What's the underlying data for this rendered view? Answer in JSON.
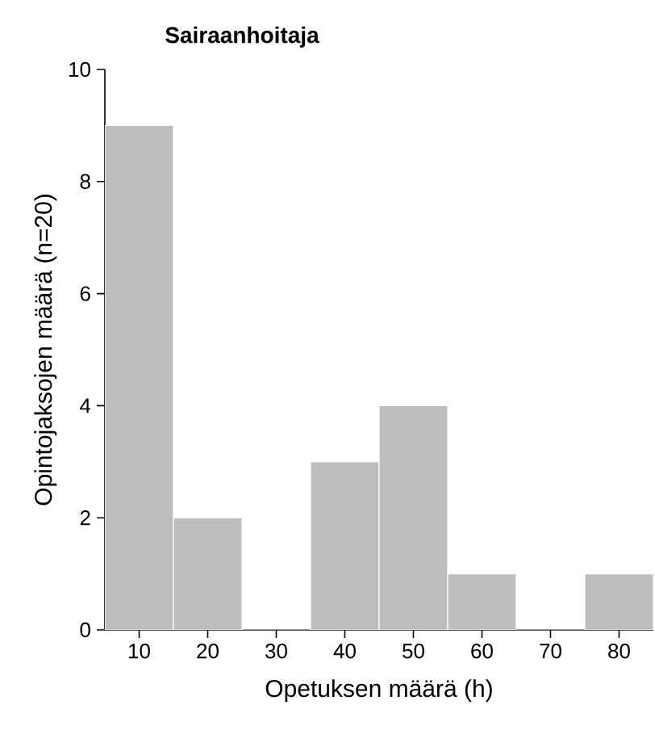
{
  "chart_data": {
    "type": "histogram",
    "title": "Sairaanhoitaja",
    "xlabel": "Opetuksen määrä (h)",
    "ylabel": "Opintojaksojen määrä (n=20)",
    "bins": [
      5,
      15,
      25,
      35,
      45,
      55,
      65,
      75,
      85
    ],
    "values": [
      9,
      2,
      0,
      3,
      4,
      1,
      0,
      1
    ],
    "color": "#bdbdbd",
    "xlim": [
      5,
      85
    ],
    "xticks": [
      10,
      20,
      30,
      40,
      50,
      60,
      70,
      80
    ],
    "ylim": [
      0,
      10
    ],
    "yticks": [
      0,
      2,
      4,
      6,
      8,
      10
    ],
    "grid": false
  }
}
